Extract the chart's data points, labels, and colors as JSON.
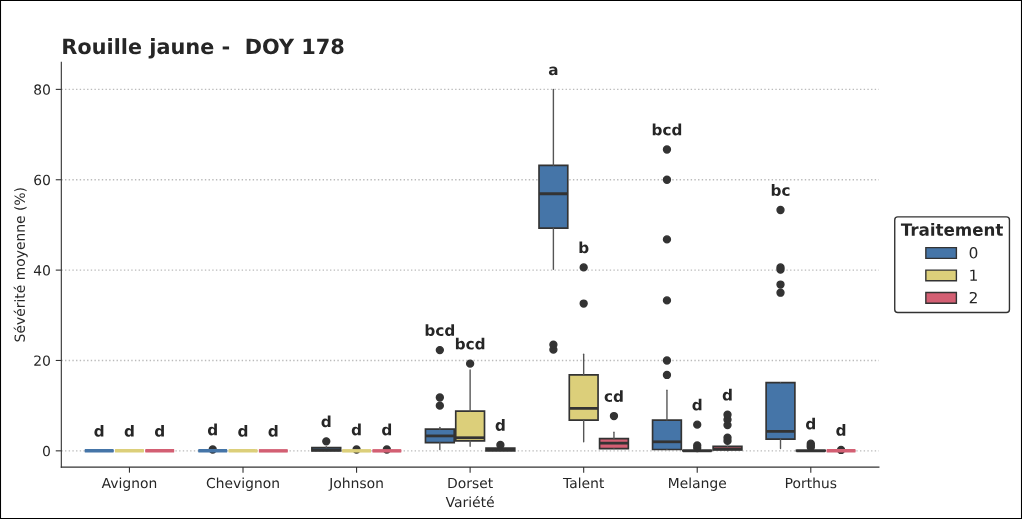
{
  "chart_data": {
    "type": "box",
    "title": "Rouille jaune -  DOY 178",
    "xlabel": "Variété",
    "ylabel": "Sévérité moyenne (%)",
    "legend_title": "Traitement",
    "legend": "right",
    "grid": "y",
    "categories": [
      "Avignon",
      "Chevignon",
      "Johnson",
      "Dorset",
      "Talent",
      "Melange",
      "Porthus"
    ],
    "ylim": [
      -3.6,
      86
    ],
    "yticks": [
      0,
      20,
      40,
      60,
      80
    ],
    "series": [
      {
        "name": "0",
        "color": "#4575a8",
        "value_labels": [
          "d",
          "d",
          "d",
          "bcd",
          "a",
          "bcd",
          "bc"
        ],
        "boxes": [
          {
            "low": 0,
            "q1": 0,
            "median": 0,
            "q3": 0,
            "high": 0
          },
          {
            "low": 0,
            "q1": 0,
            "median": 0,
            "q3": 0,
            "high": 0,
            "outliers": [
              0.3
            ]
          },
          {
            "low": 0,
            "q1": 0,
            "median": 0.2,
            "q3": 0.7,
            "high": 0.9,
            "outliers": [
              2.1
            ]
          },
          {
            "low": 0.3,
            "q1": 1.8,
            "median": 3.3,
            "q3": 4.8,
            "high": 5.2,
            "outliers": [
              10.0,
              11.8,
              22.3
            ]
          },
          {
            "low": 40.2,
            "q1": 49.3,
            "median": 56.9,
            "q3": 63.2,
            "high": 80,
            "outliers": [
              22.4,
              23.5
            ]
          },
          {
            "low": 0.3,
            "q1": 0.3,
            "median": 2.0,
            "q3": 6.8,
            "high": 13.4,
            "outliers": [
              16.8,
              20.0,
              33.3,
              46.8,
              60.0,
              66.7
            ]
          },
          {
            "low": 0.5,
            "q1": 2.6,
            "median": 4.3,
            "q3": 15.1,
            "high": 15.1,
            "outliers": [
              35.0,
              36.8,
              40.1,
              40.6,
              53.3
            ]
          }
        ]
      },
      {
        "name": "1",
        "color": "#dccf7a",
        "value_labels": [
          "d",
          "d",
          "d",
          "bcd",
          "b",
          "d",
          "d"
        ],
        "boxes": [
          {
            "low": 0,
            "q1": 0,
            "median": 0,
            "q3": 0,
            "high": 0
          },
          {
            "low": 0,
            "q1": 0,
            "median": 0,
            "q3": 0,
            "high": 0
          },
          {
            "low": 0,
            "q1": 0,
            "median": 0,
            "q3": 0,
            "high": 0,
            "outliers": [
              0.3
            ]
          },
          {
            "low": 1.0,
            "q1": 2.2,
            "median": 2.9,
            "q3": 8.8,
            "high": 17.9,
            "outliers": [
              19.3
            ]
          },
          {
            "low": 2.0,
            "q1": 6.8,
            "median": 9.4,
            "q3": 16.8,
            "high": 21.4,
            "outliers": [
              32.6,
              40.6
            ]
          },
          {
            "low": 0,
            "q1": 0,
            "median": 0,
            "q3": 0.1,
            "high": 0.2,
            "outliers": [
              0.6,
              1.2,
              5.8
            ]
          },
          {
            "low": 0,
            "q1": 0,
            "median": 0,
            "q3": 0.1,
            "high": 0.5,
            "outliers": [
              0.8,
              1.2,
              1.6
            ]
          }
        ]
      },
      {
        "name": "2",
        "color": "#d35f73",
        "value_labels": [
          "d",
          "d",
          "d",
          "d",
          "cd",
          "d",
          "d"
        ],
        "boxes": [
          {
            "low": 0,
            "q1": 0,
            "median": 0,
            "q3": 0,
            "high": 0
          },
          {
            "low": 0,
            "q1": 0,
            "median": 0,
            "q3": 0,
            "high": 0
          },
          {
            "low": 0,
            "q1": 0,
            "median": 0,
            "q3": 0,
            "high": 0,
            "outliers": [
              0.3
            ]
          },
          {
            "low": 0,
            "q1": 0,
            "median": 0.3,
            "q3": 0.6,
            "high": 0.9,
            "outliers": [
              1.3
            ]
          },
          {
            "low": 0.5,
            "q1": 0.5,
            "median": 1.7,
            "q3": 2.7,
            "high": 4.1,
            "outliers": [
              7.7
            ]
          },
          {
            "low": 0,
            "q1": 0.2,
            "median": 0.4,
            "q3": 1.0,
            "high": 1.0,
            "outliers": [
              2.2,
              2.9,
              5.7,
              6.9,
              8.0
            ]
          },
          {
            "low": 0,
            "q1": 0,
            "median": 0,
            "q3": 0,
            "high": 0,
            "outliers": [
              0.2
            ]
          }
        ]
      }
    ]
  }
}
